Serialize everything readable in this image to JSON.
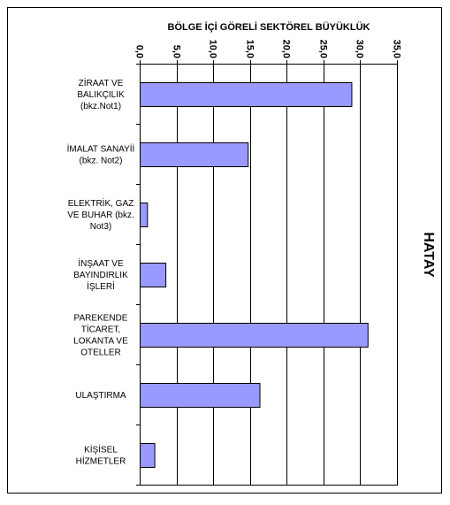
{
  "chart_data": {
    "type": "bar",
    "orientation": "horizontal",
    "title": "BÖLGE İÇİ  GÖRELİ  SEKTÖREL BÜYÜKLÜK",
    "side_label": "HATAY",
    "xlim": [
      0,
      35
    ],
    "x_ticks": [
      "0,0",
      "5,0",
      "10,0",
      "15,0",
      "20,0",
      "25,0",
      "30,0",
      "35,0"
    ],
    "grid": true,
    "categories": [
      [
        "ZİRAAT VE",
        "BALIKÇILIK",
        "(bkz.Not1)"
      ],
      [
        "İMALAT SANAYİİ",
        "(bkz. Not2)"
      ],
      [
        "ELEKTRİK, GAZ",
        "VE BUHAR (bkz.",
        "Not3)"
      ],
      [
        "İNŞAAT VE",
        "BAYINDIRLIK",
        "İŞLERİ"
      ],
      [
        "PAREKENDE",
        "TİCARET,",
        "LOKANTA VE",
        "OTELLER"
      ],
      [
        "ULAŞTIRMA"
      ],
      [
        "KİŞİSEL",
        "HİZMETLER"
      ]
    ],
    "values": [
      28.8,
      14.7,
      1.0,
      3.5,
      31.0,
      16.3,
      2.0
    ],
    "bar_color": "#9999ff",
    "bar_edge_color": "#000000",
    "grid_color": "#000000"
  }
}
